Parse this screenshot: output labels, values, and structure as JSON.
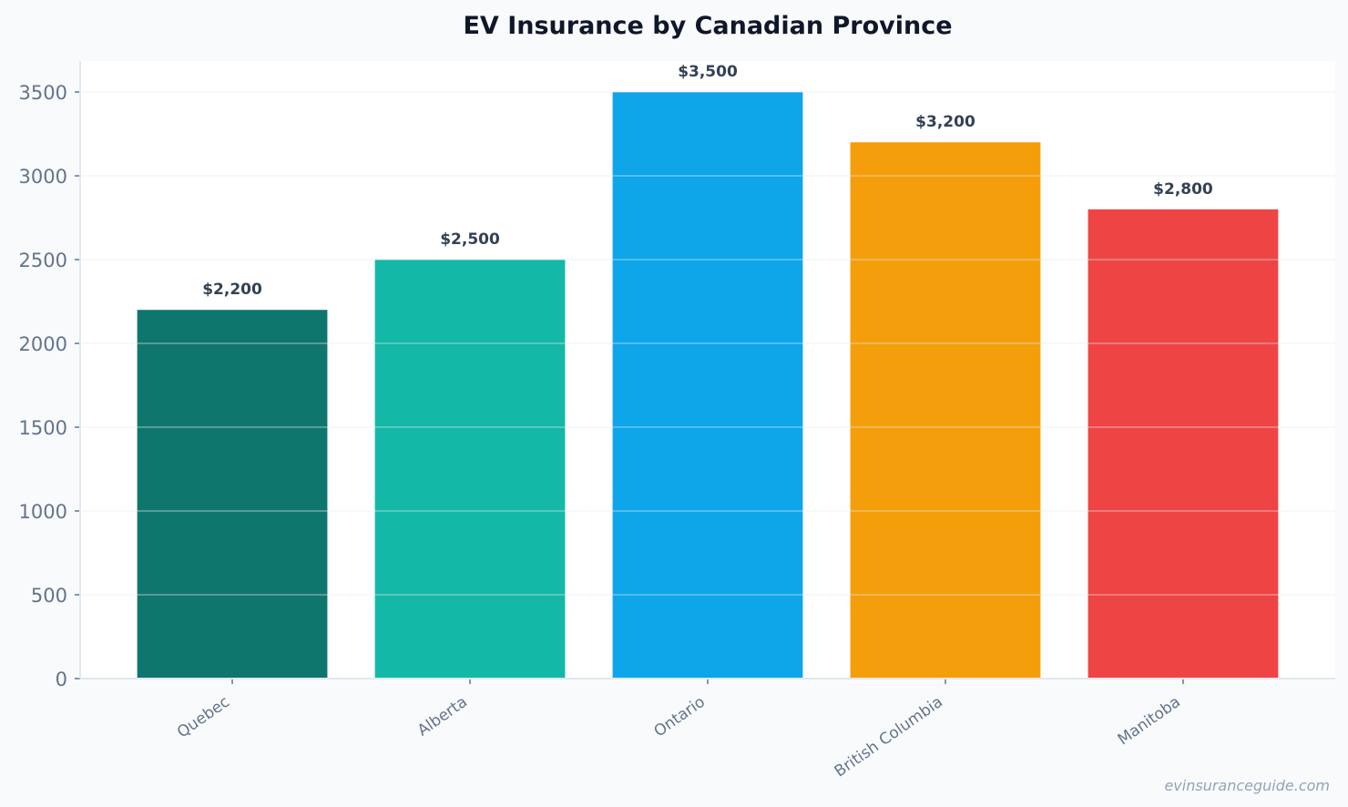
{
  "chart_data": {
    "type": "bar",
    "title": "EV Insurance by Canadian Province",
    "categories": [
      "Quebec",
      "Alberta",
      "Ontario",
      "British Columbia",
      "Manitoba"
    ],
    "values": [
      2200,
      2500,
      3500,
      3200,
      2800
    ],
    "data_labels": [
      "$2,200",
      "$2,500",
      "$3,500",
      "$3,200",
      "$2,800"
    ],
    "colors": [
      "#0f766e",
      "#14b8a6",
      "#0ea5e9",
      "#f59e0b",
      "#ef4444"
    ],
    "xlabel": "",
    "ylabel": "",
    "ylim": [
      0,
      3685
    ],
    "yticks": [
      0,
      500,
      1000,
      1500,
      2000,
      2500,
      3000,
      3500
    ],
    "grid": true,
    "watermark": "evinsuranceguide.com"
  }
}
